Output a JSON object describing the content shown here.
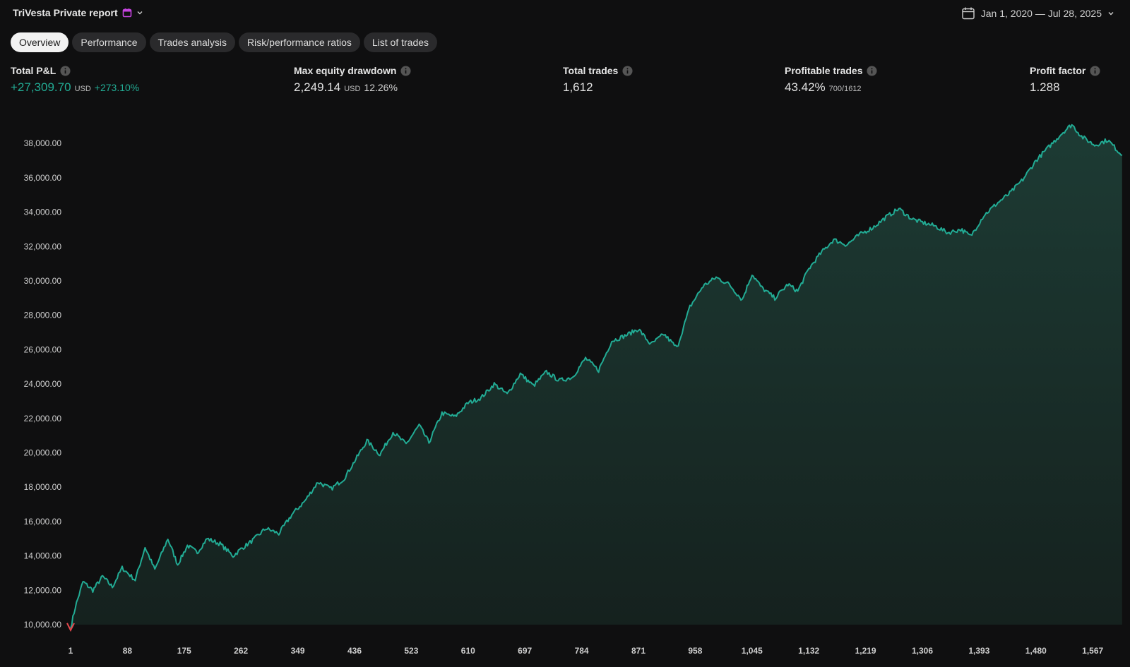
{
  "header": {
    "report_title": "TriVesta Private report",
    "date_range": "Jan 1, 2020 — Jul 28, 2025"
  },
  "tabs": [
    {
      "label": "Overview",
      "active": true
    },
    {
      "label": "Performance",
      "active": false
    },
    {
      "label": "Trades analysis",
      "active": false
    },
    {
      "label": "Risk/performance ratios",
      "active": false
    },
    {
      "label": "List of trades",
      "active": false
    }
  ],
  "metrics": {
    "total_pnl": {
      "label": "Total P&L",
      "value": "+27,309.70",
      "unit": "USD",
      "percent": "+273.10%"
    },
    "max_drawdown": {
      "label": "Max equity drawdown",
      "value": "2,249.14",
      "unit": "USD",
      "percent": "12.26%"
    },
    "total_trades": {
      "label": "Total trades",
      "value": "1,612"
    },
    "profitable_trades": {
      "label": "Profitable trades",
      "value": "43.42%",
      "ratio": "700/1612"
    },
    "profit_factor": {
      "label": "Profit factor",
      "value": "1.288"
    }
  },
  "colors": {
    "accent_line": "#22ab94",
    "fill_top": "#1d3b34",
    "fill_bottom": "#15211e",
    "loss_marker": "#e5484d",
    "calendar_badge": "#c744e0"
  },
  "chart_data": {
    "type": "area",
    "x_ticks": [
      "1",
      "88",
      "175",
      "262",
      "349",
      "436",
      "523",
      "610",
      "697",
      "784",
      "871",
      "958",
      "1,045",
      "1,132",
      "1,219",
      "1,306",
      "1,393",
      "1,480",
      "1,567"
    ],
    "y_ticks": [
      "10,000.00",
      "12,000.00",
      "14,000.00",
      "16,000.00",
      "18,000.00",
      "20,000.00",
      "22,000.00",
      "24,000.00",
      "26,000.00",
      "28,000.00",
      "30,000.00",
      "32,000.00",
      "34,000.00",
      "36,000.00",
      "38,000.00"
    ],
    "xlim": [
      1,
      1612
    ],
    "ylim": [
      10000,
      38000
    ],
    "grid": false,
    "x": [
      1,
      8,
      20,
      35,
      50,
      65,
      80,
      100,
      115,
      130,
      150,
      165,
      180,
      195,
      210,
      230,
      250,
      262,
      280,
      300,
      320,
      340,
      360,
      380,
      400,
      420,
      436,
      455,
      475,
      495,
      515,
      535,
      550,
      570,
      590,
      610,
      630,
      650,
      670,
      690,
      710,
      730,
      750,
      770,
      790,
      810,
      830,
      850,
      871,
      890,
      910,
      930,
      950,
      970,
      990,
      1010,
      1030,
      1045,
      1060,
      1080,
      1100,
      1115,
      1132,
      1150,
      1170,
      1190,
      1210,
      1230,
      1250,
      1270,
      1290,
      1306,
      1325,
      1345,
      1365,
      1380,
      1400,
      1420,
      1440,
      1460,
      1480,
      1500,
      1520,
      1535,
      1550,
      1570,
      1590,
      1600,
      1612
    ],
    "values": [
      9800,
      11000,
      12500,
      12000,
      12800,
      12200,
      13300,
      12600,
      14500,
      13200,
      15000,
      13500,
      14600,
      14200,
      15000,
      14700,
      14000,
      14400,
      14900,
      15600,
      15300,
      16400,
      17200,
      18300,
      17900,
      18500,
      19500,
      20700,
      19900,
      21200,
      20500,
      21600,
      20600,
      22300,
      22100,
      22900,
      23200,
      24000,
      23400,
      24600,
      23900,
      24700,
      24200,
      24400,
      25500,
      24800,
      26500,
      26800,
      27200,
      26300,
      26900,
      26100,
      28500,
      29700,
      30200,
      29800,
      28900,
      30400,
      29600,
      29000,
      29800,
      29400,
      30700,
      31600,
      32400,
      32100,
      32700,
      33100,
      33700,
      34200,
      33600,
      33400,
      33200,
      32800,
      33000,
      32600,
      33800,
      34500,
      35100,
      35900,
      37000,
      37800,
      38600,
      39100,
      38400,
      37900,
      38200,
      37800,
      37300
    ]
  }
}
